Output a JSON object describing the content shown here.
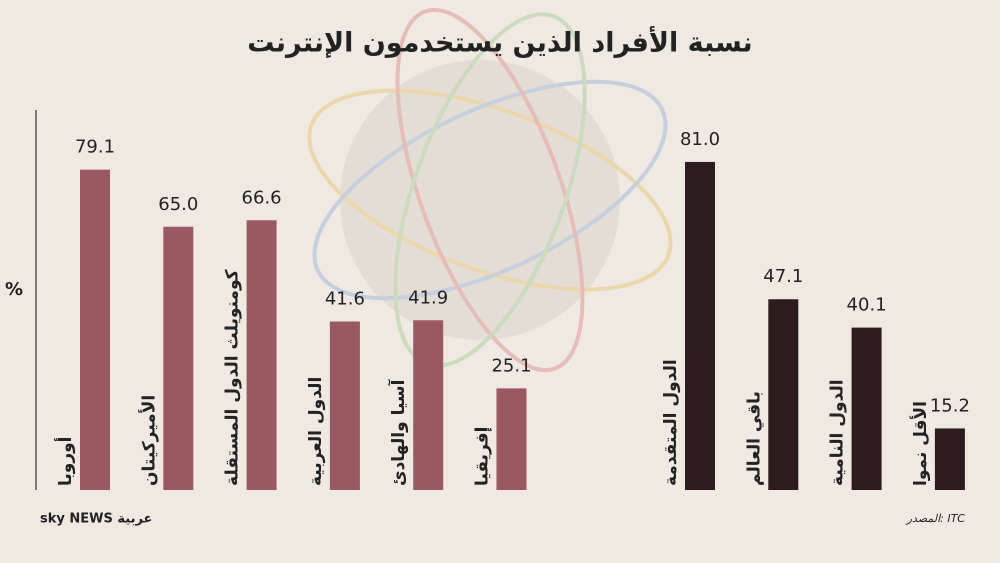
{
  "chart_data": {
    "type": "bar",
    "title": "نسبة الأفراد الذين يستخدمون الإنترنت",
    "ylabel": "%",
    "source": "المصدر: ITC",
    "logo": "sky NEWS عربية",
    "ylim": [
      0,
      100
    ],
    "series": [
      {
        "color": "#9a5860",
        "categories": [
          "أوروبا",
          "الأميركيتان",
          "كومنويلث الدول المستقلة",
          "الدول العربية",
          "آسيا والهادئ",
          "إفريقيا"
        ],
        "values": [
          79.1,
          65.0,
          66.6,
          41.6,
          41.9,
          25.1
        ],
        "value_labels": [
          "79.1",
          "65.0",
          "66.6",
          "41.6",
          "41.9",
          "25.1"
        ]
      },
      {
        "color": "#2e1b1d",
        "categories": [
          "الدول المتقدمة",
          "باقي العالم",
          "الدول النامية",
          "الأقل نموا"
        ],
        "values": [
          81.0,
          47.1,
          40.1,
          15.2
        ],
        "value_labels": [
          "81.0",
          "47.1",
          "40.1",
          "15.2"
        ]
      }
    ]
  }
}
